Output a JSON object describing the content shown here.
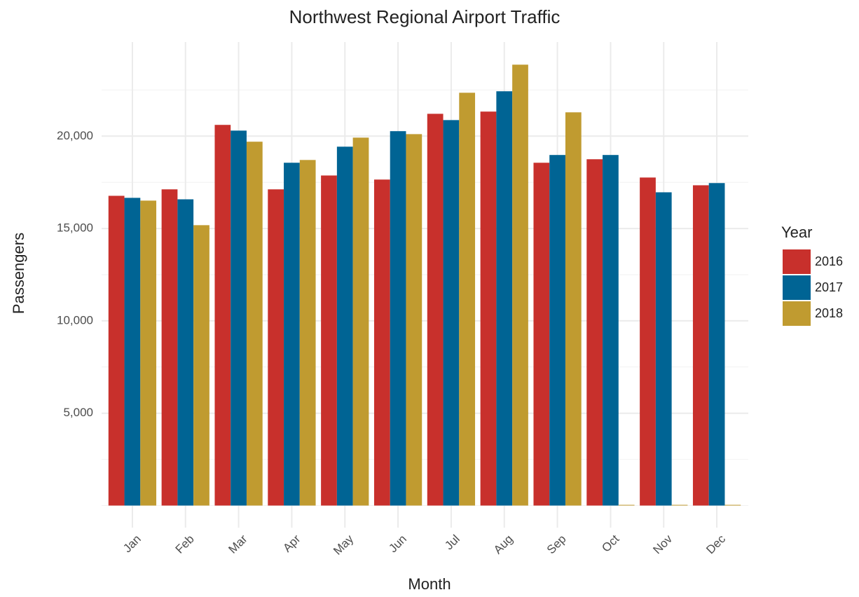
{
  "chart_data": {
    "type": "bar",
    "title": "Northwest Regional Airport Traffic",
    "x_label": "Month",
    "y_label": "Passengers",
    "legend_title": "Year",
    "categories": [
      "Jan",
      "Feb",
      "Mar",
      "Apr",
      "May",
      "Jun",
      "Jul",
      "Aug",
      "Sep",
      "Oct",
      "Nov",
      "Dec"
    ],
    "series": [
      {
        "name": "2016",
        "color": "#c8302c",
        "values": [
          16770,
          17120,
          20610,
          17120,
          17870,
          17650,
          21210,
          21330,
          18560,
          18750,
          17760,
          17340
        ]
      },
      {
        "name": "2017",
        "color": "#006494",
        "values": [
          16660,
          16580,
          20300,
          18560,
          19430,
          20270,
          20870,
          22430,
          18980,
          18980,
          16960,
          17460
        ]
      },
      {
        "name": "2018",
        "color": "#c09b30",
        "values": [
          16510,
          15180,
          19700,
          18710,
          19920,
          20110,
          22350,
          23870,
          21290,
          0,
          0,
          0
        ]
      }
    ],
    "ylim": [
      -1195,
      25095
    ],
    "yticks": [
      {
        "value": 5000,
        "label": "5,000"
      },
      {
        "value": 10000,
        "label": "10,000"
      },
      {
        "value": 15000,
        "label": "15,000"
      },
      {
        "value": 20000,
        "label": "20,000"
      }
    ],
    "y_minor_ticks": [
      0,
      2500,
      7500,
      12500,
      17500,
      22500
    ],
    "grid": true,
    "legend": "right"
  }
}
